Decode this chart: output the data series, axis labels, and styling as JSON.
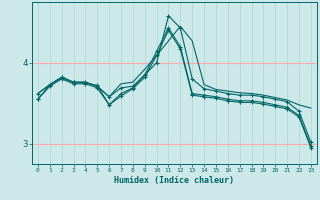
{
  "xlabel": "Humidex (Indice chaleur)",
  "background_color": "#cce8e8",
  "line_color": "#006666",
  "grid_color_h": "#ffaaaa",
  "grid_color_v": "#b0d8d8",
  "xlim": [
    -0.5,
    23.5
  ],
  "ylim": [
    2.75,
    4.75
  ],
  "yticks": [
    3,
    4
  ],
  "xticks": [
    0,
    1,
    2,
    3,
    4,
    5,
    6,
    7,
    8,
    9,
    10,
    11,
    12,
    13,
    14,
    15,
    16,
    17,
    18,
    19,
    20,
    21,
    22,
    23
  ],
  "series": [
    {
      "y": [
        3.62,
        3.73,
        3.82,
        3.76,
        3.76,
        3.71,
        3.58,
        3.74,
        3.76,
        3.92,
        4.09,
        4.27,
        4.45,
        4.27,
        3.73,
        3.67,
        3.65,
        3.63,
        3.62,
        3.6,
        3.57,
        3.54,
        3.48,
        3.44
      ],
      "marker": false
    },
    {
      "y": [
        3.62,
        3.73,
        3.82,
        3.76,
        3.76,
        3.71,
        3.58,
        3.69,
        3.71,
        3.85,
        4.0,
        4.58,
        4.43,
        3.8,
        3.68,
        3.65,
        3.62,
        3.6,
        3.6,
        3.58,
        3.55,
        3.52,
        3.4,
        3.02
      ],
      "marker": true
    },
    {
      "y": [
        3.55,
        3.73,
        3.82,
        3.76,
        3.75,
        3.72,
        3.48,
        3.62,
        3.69,
        3.85,
        4.14,
        4.43,
        4.2,
        3.62,
        3.6,
        3.58,
        3.55,
        3.53,
        3.53,
        3.51,
        3.48,
        3.45,
        3.35,
        2.97
      ],
      "marker": true
    },
    {
      "y": [
        3.55,
        3.71,
        3.8,
        3.74,
        3.74,
        3.69,
        3.48,
        3.59,
        3.68,
        3.82,
        4.09,
        4.4,
        4.17,
        3.6,
        3.58,
        3.56,
        3.53,
        3.51,
        3.51,
        3.49,
        3.46,
        3.43,
        3.33,
        2.95
      ],
      "marker": true
    }
  ]
}
